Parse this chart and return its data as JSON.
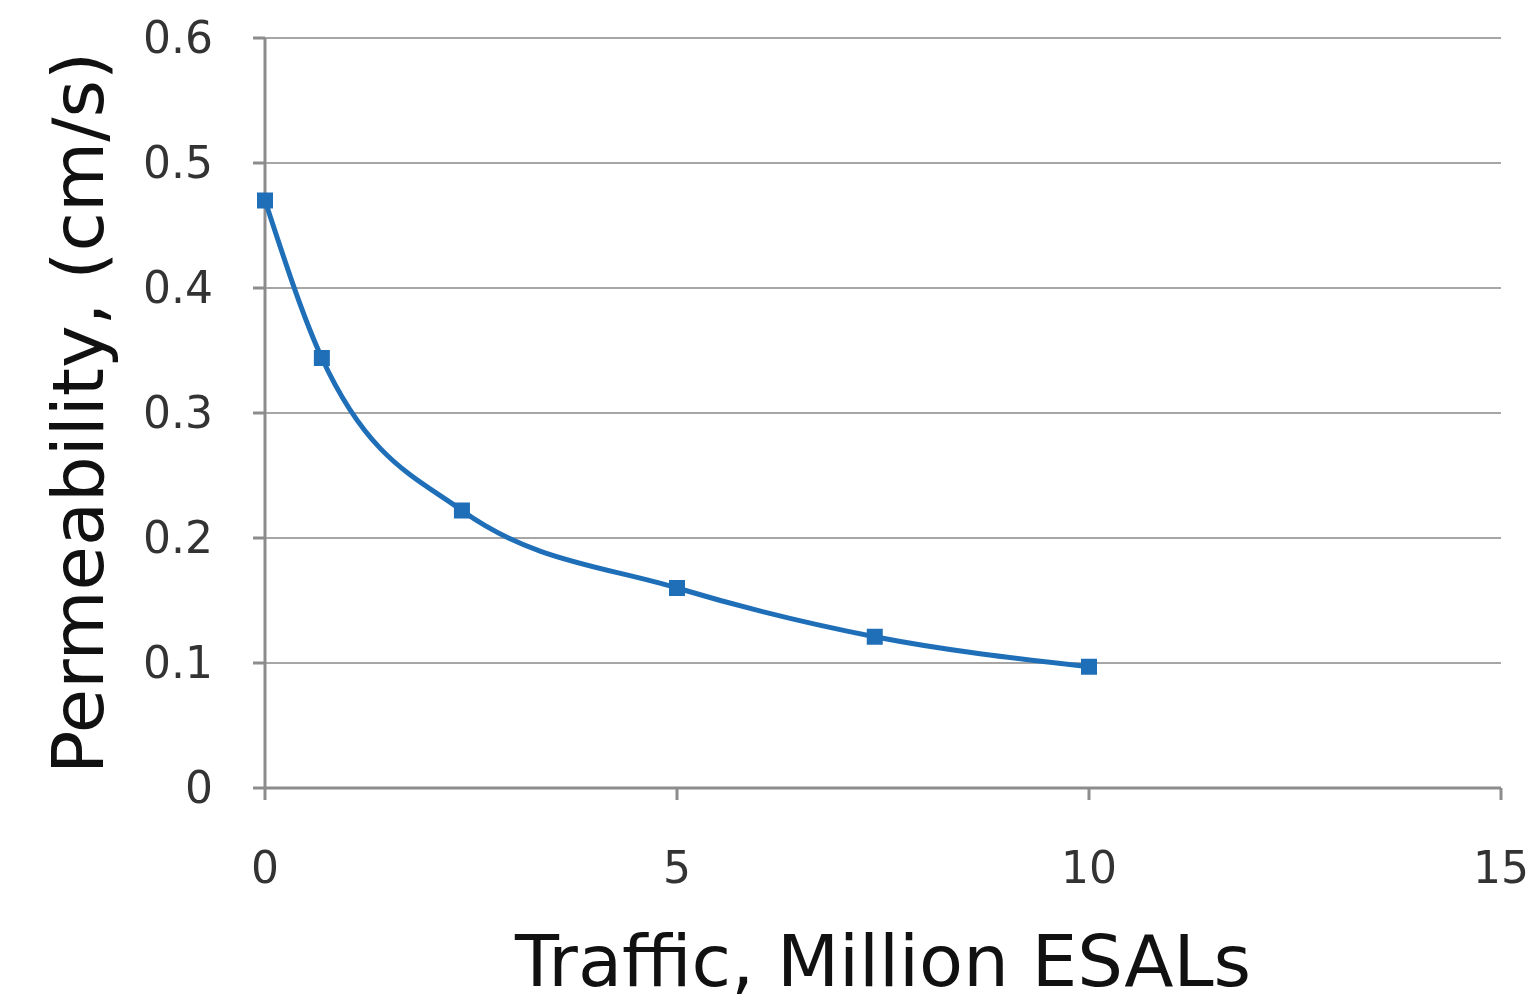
{
  "chart_data": {
    "type": "line",
    "xlabel": "Traffic, Million ESALs",
    "ylabel": "Permeability, (cm/s)",
    "x": [
      0,
      0.69,
      2.39,
      5,
      7.4,
      10
    ],
    "series": [
      {
        "color": "#1f6fb8",
        "values": [
          0.47,
          0.344,
          0.222,
          0.16,
          0.121,
          0.097
        ]
      }
    ],
    "xlim": [
      0,
      15
    ],
    "xticks": [
      0,
      5,
      10,
      15
    ],
    "ylim": [
      0,
      0.6
    ],
    "yticks": [
      0,
      0.1,
      0.2,
      0.3,
      0.4,
      0.5,
      0.6
    ],
    "grid": "y",
    "marker": "square",
    "line_style": "solid"
  }
}
